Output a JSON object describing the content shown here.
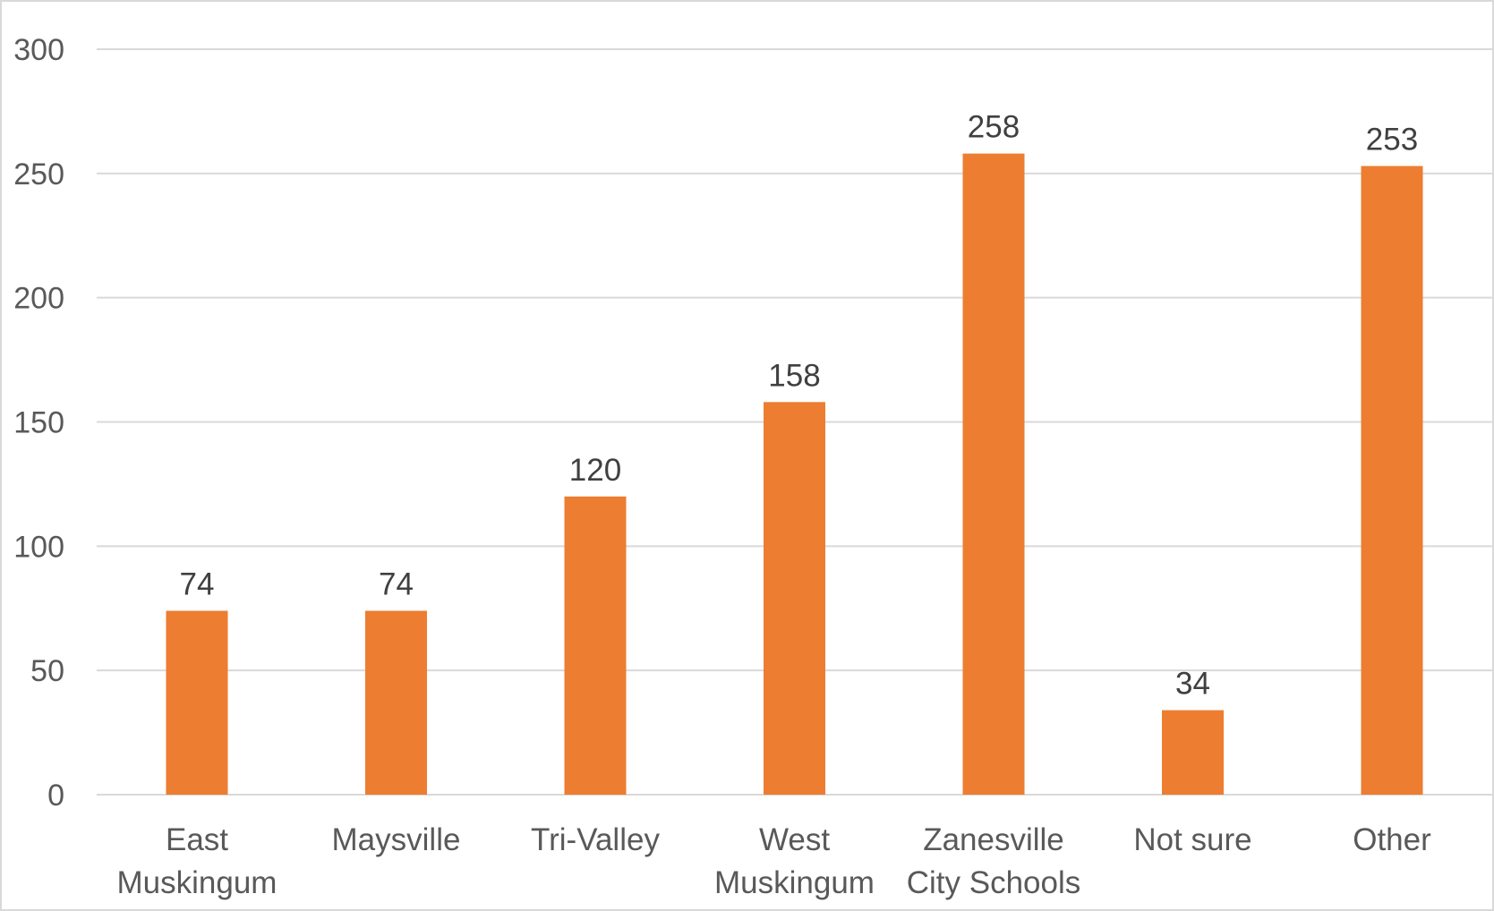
{
  "chart_data": {
    "type": "bar",
    "categories": [
      [
        "East",
        "Muskingum"
      ],
      [
        "Maysville"
      ],
      [
        "Tri-Valley"
      ],
      [
        "West",
        "Muskingum"
      ],
      [
        "Zanesville",
        "City Schools"
      ],
      [
        "Not sure"
      ],
      [
        "Other"
      ]
    ],
    "values": [
      74,
      74,
      120,
      158,
      258,
      34,
      253
    ],
    "ylim": [
      0,
      300
    ],
    "yticks": [
      0,
      50,
      100,
      150,
      200,
      250,
      300
    ],
    "grid": true,
    "data_labels": true,
    "title": "",
    "xlabel": "",
    "ylabel": "",
    "colors": {
      "bar": "#ED7D31",
      "grid": "#D9D9D9",
      "axis_text": "#595959",
      "label_text": "#404040"
    }
  }
}
